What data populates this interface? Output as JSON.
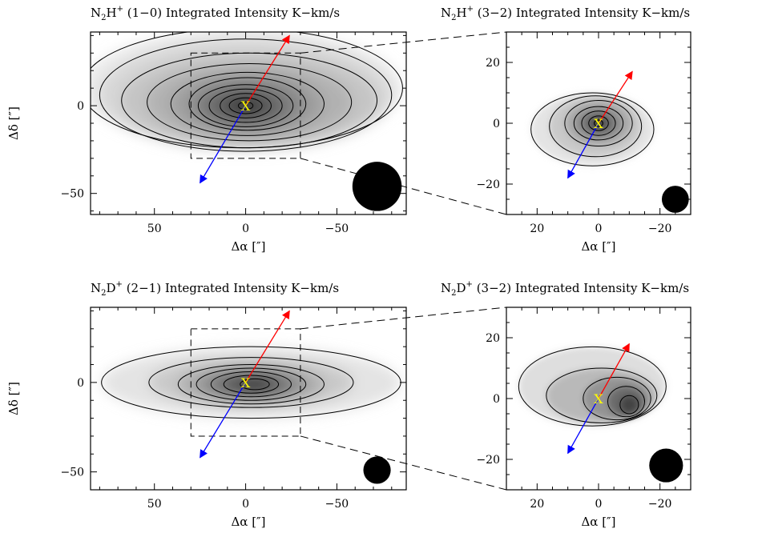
{
  "chart_data": [
    {
      "id": "n2h10",
      "type": "heatmap",
      "title_main": "N",
      "title_sub": "2",
      "title_element": "H",
      "title_sup": "+",
      "title_rest": " (1−0) Integrated Intensity K−km/s",
      "xlabel": "Δα [″]",
      "ylabel": "Δδ [″]",
      "xlim": [
        85,
        -88
      ],
      "ylim": [
        -62,
        42
      ],
      "xticks": [
        50,
        0,
        -50
      ],
      "xtick_labels": [
        "50",
        "0",
        "−50"
      ],
      "yticks": [
        0,
        -50
      ],
      "ytick_labels": [
        "0",
        "−50"
      ],
      "center_marker": "X",
      "red_arrow_to": [
        -24,
        40
      ],
      "blue_arrow_to": [
        25,
        -44
      ],
      "beam": {
        "x": -72,
        "y": -46,
        "r": 13.5
      },
      "dashed_box": {
        "x": [
          30,
          -30
        ],
        "y": [
          -30,
          30
        ]
      },
      "contours": [
        {
          "rx": 88,
          "ry": 34,
          "cx": 2,
          "cy": 10
        },
        {
          "rx": 80,
          "ry": 32,
          "cx": 0,
          "cy": 6
        },
        {
          "rx": 70,
          "ry": 27,
          "cx": -2,
          "cy": 3
        },
        {
          "rx": 56,
          "ry": 22,
          "cx": -2,
          "cy": 2
        },
        {
          "rx": 42,
          "ry": 18,
          "cx": -1,
          "cy": 1
        },
        {
          "rx": 32,
          "ry": 15,
          "cx": -1,
          "cy": 1
        },
        {
          "rx": 26,
          "ry": 12,
          "cx": 0,
          "cy": 0
        },
        {
          "rx": 20,
          "ry": 9.5,
          "cx": 0,
          "cy": 0
        },
        {
          "rx": 14,
          "ry": 7,
          "cx": 0,
          "cy": 0
        },
        {
          "rx": 9,
          "ry": 4.5,
          "cx": 0,
          "cy": 0
        },
        {
          "rx": 4,
          "ry": 2.2,
          "cx": 0,
          "cy": 0
        }
      ]
    },
    {
      "id": "n2h32",
      "type": "heatmap",
      "title_main": "N",
      "title_sub": "2",
      "title_element": "H",
      "title_sup": "+",
      "title_rest": " (3−2) Integrated Intensity K−km/s",
      "xlabel": "Δα [″]",
      "ylabel": "",
      "xlim": [
        30,
        -30
      ],
      "ylim": [
        -30,
        30
      ],
      "xticks": [
        20,
        0,
        -20
      ],
      "xtick_labels": [
        "20",
        "0",
        "−20"
      ],
      "yticks": [
        20,
        0,
        -20
      ],
      "ytick_labels": [
        "20",
        "0",
        "−20"
      ],
      "center_marker": "X",
      "red_arrow_to": [
        -11,
        17
      ],
      "blue_arrow_to": [
        10,
        -18
      ],
      "beam": {
        "x": -25,
        "y": -25,
        "r": 4.4
      },
      "contours": [
        {
          "rx": 20,
          "ry": 12,
          "cx": 2,
          "cy": -2
        },
        {
          "rx": 15,
          "ry": 10,
          "cx": 1,
          "cy": -1
        },
        {
          "rx": 11,
          "ry": 7.5,
          "cx": 0,
          "cy": 0
        },
        {
          "rx": 8,
          "ry": 5.5,
          "cx": 0,
          "cy": 0
        },
        {
          "rx": 5.5,
          "ry": 4,
          "cx": 0,
          "cy": 0
        },
        {
          "rx": 3.2,
          "ry": 2.4,
          "cx": 0,
          "cy": 0
        },
        {
          "rx": 1.4,
          "ry": 1.1,
          "cx": 0,
          "cy": 0
        }
      ]
    },
    {
      "id": "n2d21",
      "type": "heatmap",
      "title_main": "N",
      "title_sub": "2",
      "title_element": "D",
      "title_sup": "+",
      "title_rest": " (2−1) Integrated Intensity K−km/s",
      "xlabel": "Δα [″]",
      "ylabel": "Δδ [″]",
      "xlim": [
        85,
        -88
      ],
      "ylim": [
        -60,
        42
      ],
      "xticks": [
        50,
        0,
        -50
      ],
      "xtick_labels": [
        "50",
        "0",
        "−50"
      ],
      "yticks": [
        0,
        -50
      ],
      "ytick_labels": [
        "0",
        "−50"
      ],
      "center_marker": "X",
      "red_arrow_to": [
        -24,
        40
      ],
      "blue_arrow_to": [
        25,
        -42
      ],
      "beam": {
        "x": -72,
        "y": -49,
        "r": 7.5
      },
      "dashed_box": {
        "x": [
          30,
          -30
        ],
        "y": [
          -30,
          30
        ]
      },
      "contours": [
        {
          "rx": 82,
          "ry": 20,
          "cx": -3,
          "cy": 0
        },
        {
          "rx": 56,
          "ry": 14,
          "cx": -3,
          "cy": 0
        },
        {
          "rx": 40,
          "ry": 11,
          "cx": -3,
          "cy": -1
        },
        {
          "rx": 30,
          "ry": 9,
          "cx": -3,
          "cy": -1
        },
        {
          "rx": 22,
          "ry": 7,
          "cx": -3,
          "cy": -1
        },
        {
          "rx": 15,
          "ry": 5,
          "cx": -3,
          "cy": -1
        },
        {
          "rx": 8,
          "ry": 3,
          "cx": -5,
          "cy": -1
        }
      ]
    },
    {
      "id": "n2d32",
      "type": "heatmap",
      "title_main": "N",
      "title_sub": "2",
      "title_element": "D",
      "title_sup": "+",
      "title_rest": " (3−2) Integrated Intensity K−km/s",
      "xlabel": "Δα [″]",
      "ylabel": "",
      "xlim": [
        30,
        -30
      ],
      "ylim": [
        -30,
        30
      ],
      "xticks": [
        20,
        0,
        -20
      ],
      "xtick_labels": [
        "20",
        "0",
        "−20"
      ],
      "yticks": [
        20,
        0,
        -20
      ],
      "ytick_labels": [
        "20",
        "0",
        "−20"
      ],
      "center_marker": "X",
      "red_arrow_to": [
        -10,
        18
      ],
      "blue_arrow_to": [
        10,
        -18
      ],
      "beam": {
        "x": -22,
        "y": -22,
        "r": 5.5
      },
      "contours": [
        {
          "rx": 24,
          "ry": 13,
          "cx": 2,
          "cy": 4
        },
        {
          "rx": 18,
          "ry": 9,
          "cx": -1,
          "cy": 1
        },
        {
          "rx": 11,
          "ry": 7,
          "cx": -6,
          "cy": 0
        },
        {
          "rx": 6,
          "ry": 5,
          "cx": -9,
          "cy": -1
        },
        {
          "rx": 3,
          "ry": 3,
          "cx": -10,
          "cy": -2
        }
      ]
    }
  ],
  "colors": {
    "red_arrow": "#ff0000",
    "blue_arrow": "#0000ff",
    "marker": "#ffff00",
    "contour": "#000000",
    "beam": "#000000"
  }
}
